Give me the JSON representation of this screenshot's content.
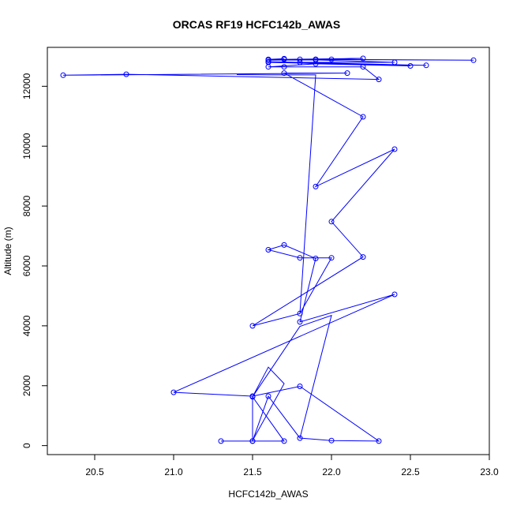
{
  "chart_data": {
    "type": "line",
    "title": "ORCAS RF19 HCFC142b_AWAS",
    "xlabel": "HCFC142b_AWAS",
    "ylabel": "Altitude (m)",
    "xlim": [
      20.2,
      23.0
    ],
    "ylim": [
      -300,
      13300
    ],
    "x_ticks": [
      "20.5",
      "21.0",
      "21.5",
      "22.0",
      "22.5",
      "23.0"
    ],
    "y_ticks": [
      "0",
      "2000",
      "4000",
      "6000",
      "8000",
      "10000",
      "12000"
    ],
    "grid": false,
    "legend": "none",
    "marker": "open-circle",
    "color": "#0000ff",
    "series": [
      {
        "x": [
          21.3,
          21.5,
          21.7,
          21.5,
          21.5,
          21.6,
          21.8,
          22.0,
          22.3,
          21.8,
          21.5,
          21.0,
          22.4,
          21.8,
          21.9,
          21.7,
          21.6,
          21.8,
          22.0,
          21.8,
          21.5,
          22.2,
          22.0,
          22.4,
          21.9,
          22.2,
          21.7,
          22.1,
          20.3,
          20.7,
          22.3,
          22.2,
          21.7,
          21.6,
          21.9,
          22.5,
          21.6,
          22.6,
          21.6,
          21.8,
          22.4,
          21.9,
          21.6,
          21.9,
          22.2,
          21.7,
          22.9,
          22.0,
          21.9,
          21.8,
          21.6,
          21.7
        ],
        "y": [
          150,
          150,
          150,
          1630,
          150,
          1650,
          250,
          170,
          150,
          1980,
          1650,
          1780,
          5050,
          4130,
          6250,
          6700,
          6540,
          6270,
          6270,
          4410,
          4000,
          6300,
          7480,
          9900,
          8650,
          10980,
          12440,
          12440,
          12370,
          12400,
          12230,
          12650,
          12650,
          12650,
          12750,
          12680,
          12800,
          12700,
          12820,
          12800,
          12800,
          12880,
          12870,
          12900,
          12930,
          12900,
          12870,
          12900,
          12900,
          12900,
          12900,
          12920
        ]
      }
    ],
    "extra_segments": [
      {
        "x": [
          21.8,
          22.0,
          21.8,
          21.5,
          21.6,
          21.7,
          21.5
        ],
        "y": [
          250,
          4350,
          3980,
          1630,
          2620,
          2070,
          170
        ]
      },
      {
        "x": [
          21.8,
          21.9,
          21.6,
          21.4
        ],
        "y": [
          4410,
          12380,
          12380,
          12390
        ]
      }
    ]
  }
}
